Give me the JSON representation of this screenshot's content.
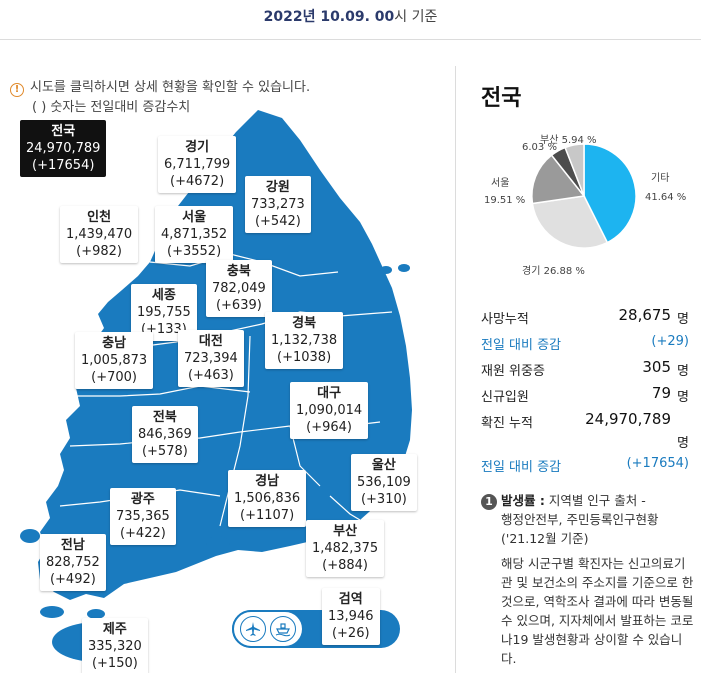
{
  "header": {
    "date": "2022년 10.09. 00",
    "suffix": "시 기준"
  },
  "notice": {
    "icon": "info-icon",
    "line1": "시도를 클릭하시면 상세 현황을 확인할 수 있습니다.",
    "line2": "( ) 숫자는 전일대비 증감수치"
  },
  "map": {
    "fill_color": "#1a7bbf",
    "border_color": "#ffffff",
    "regions": [
      {
        "id": "total",
        "name": "전국",
        "count": "24,970,789",
        "delta": "(+17654)"
      },
      {
        "id": "gyeonggi",
        "name": "경기",
        "count": "6,711,799",
        "delta": "(+4672)"
      },
      {
        "id": "gangwon",
        "name": "강원",
        "count": "733,273",
        "delta": "(+542)"
      },
      {
        "id": "incheon",
        "name": "인천",
        "count": "1,439,470",
        "delta": "(+982)"
      },
      {
        "id": "seoul",
        "name": "서울",
        "count": "4,871,352",
        "delta": "(+3552)"
      },
      {
        "id": "chungbuk",
        "name": "충북",
        "count": "782,049",
        "delta": "(+639)"
      },
      {
        "id": "sejong",
        "name": "세종",
        "count": "195,755",
        "delta": "(+133)"
      },
      {
        "id": "chungnam",
        "name": "충남",
        "count": "1,005,873",
        "delta": "(+700)"
      },
      {
        "id": "daejeon",
        "name": "대전",
        "count": "723,394",
        "delta": "(+463)"
      },
      {
        "id": "gyeongbuk",
        "name": "경북",
        "count": "1,132,738",
        "delta": "(+1038)"
      },
      {
        "id": "daegu",
        "name": "대구",
        "count": "1,090,014",
        "delta": "(+964)"
      },
      {
        "id": "jeonbuk",
        "name": "전북",
        "count": "846,369",
        "delta": "(+578)"
      },
      {
        "id": "ulsan",
        "name": "울산",
        "count": "536,109",
        "delta": "(+310)"
      },
      {
        "id": "gyeongnam",
        "name": "경남",
        "count": "1,506,836",
        "delta": "(+1107)"
      },
      {
        "id": "gwangju",
        "name": "광주",
        "count": "735,365",
        "delta": "(+422)"
      },
      {
        "id": "busan",
        "name": "부산",
        "count": "1,482,375",
        "delta": "(+884)"
      },
      {
        "id": "jeonnam",
        "name": "전남",
        "count": "828,752",
        "delta": "(+492)"
      },
      {
        "id": "quarantine",
        "name": "검역",
        "count": "13,946",
        "delta": "(+26)"
      },
      {
        "id": "jeju",
        "name": "제주",
        "count": "335,320",
        "delta": "(+150)"
      }
    ],
    "transport_icons": [
      "airplane-icon",
      "ship-icon"
    ]
  },
  "national": {
    "title": "전국",
    "pie": {
      "colors": {
        "기타": "#1db4f0",
        "경기": "#e0e0e0",
        "서울": "#9a9a9a",
        "부산": "#4d4d4d",
        "other_small": "#c8c8c8"
      },
      "labels": {
        "busan": "부산 5.94 %",
        "other_small": "6.03 %",
        "seoul_name": "서울",
        "seoul_pct": "19.51 %",
        "etc_name": "기타",
        "etc_pct": "41.64 %",
        "gyeonggi": "경기 26.88 %"
      }
    },
    "stats": {
      "deaths_label": "사망누적",
      "deaths_value": "28,675",
      "deaths_unit": "명",
      "deaths_delta_label": "전일 대비 증감",
      "deaths_delta_value": "(+29)",
      "severe_label": "재원 위중증",
      "severe_value": "305",
      "severe_unit": "명",
      "admitted_label": "신규입원",
      "admitted_value": "79",
      "admitted_unit": "명",
      "confirmed_label": "확진 누적",
      "confirmed_value": "24,970,789",
      "confirmed_unit": "명",
      "confirmed_delta_label": "전일 대비 증감",
      "confirmed_delta_value": "(+17654)"
    },
    "note": {
      "number": "1",
      "head_bold": "발생률 :",
      "head_rest": " 지역별 인구 출처 -",
      "line2": "행정안전부, 주민등록인구현황",
      "line3": "('21.12월 기준)",
      "body": "해당 시군구별 확진자는 신고의료기관 및 보건소의 주소지를 기준으로 한 것으로, 역학조사 결과에 따라 변동될 수 있으며, 지자체에서 발표하는 코로나19 발생현황과 상이할 수 있습니다."
    }
  }
}
